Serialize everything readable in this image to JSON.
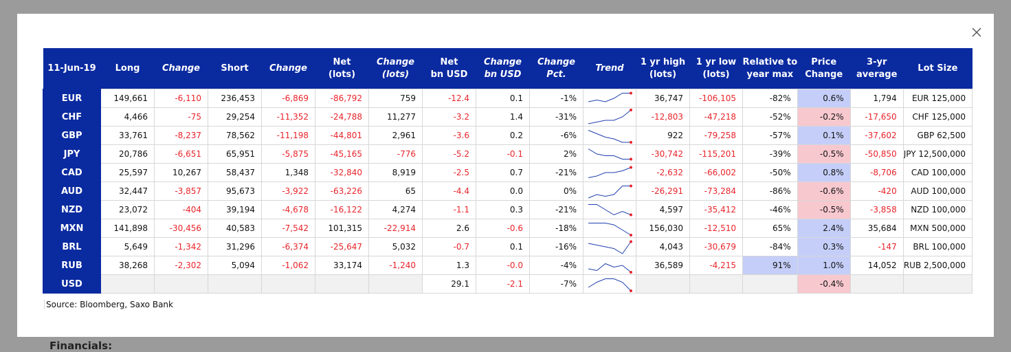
{
  "modal": {
    "close_icon": "close-icon",
    "behind_text": "Financials:"
  },
  "table": {
    "headers": [
      {
        "line1": "11-Jun-19",
        "line2": "",
        "italic": false
      },
      {
        "line1": "Long",
        "line2": "",
        "italic": false
      },
      {
        "line1": "Change",
        "line2": "",
        "italic": true
      },
      {
        "line1": "Short",
        "line2": "",
        "italic": false
      },
      {
        "line1": "Change",
        "line2": "",
        "italic": true
      },
      {
        "line1": "Net",
        "line2": "(lots)",
        "italic": false
      },
      {
        "line1": "Change",
        "line2": "(lots)",
        "italic": true
      },
      {
        "line1": "Net",
        "line2": "bn USD",
        "italic": false
      },
      {
        "line1": "Change",
        "line2": "bn USD",
        "italic": true
      },
      {
        "line1": "Change",
        "line2": "Pct.",
        "italic": true
      },
      {
        "line1": "Trend",
        "line2": "",
        "italic": true
      },
      {
        "line1": "1 yr high",
        "line2": "(lots)",
        "italic": false
      },
      {
        "line1": "1 yr low",
        "line2": "(lots)",
        "italic": false
      },
      {
        "line1": "Relative to",
        "line2": "year max",
        "italic": false
      },
      {
        "line1": "Price",
        "line2": "Change",
        "italic": false
      },
      {
        "line1": "3-yr",
        "line2": "average",
        "italic": false
      },
      {
        "line1": "Lot Size",
        "line2": "",
        "italic": false
      }
    ],
    "rows": [
      {
        "ccy": "EUR",
        "long": "149,661",
        "chg1": "-6,110",
        "short": "236,453",
        "chg2": "-6,869",
        "net": "-86,792",
        "chg_lots": "759",
        "net_usd": "-12.4",
        "chg_usd": "0.1",
        "chg_pct": "-1%",
        "trend": [
          6,
          5,
          6,
          4,
          1,
          1
        ],
        "high": "36,747",
        "low": "-106,105",
        "rel": "-82%",
        "price": "0.6%",
        "price_sign": "pos",
        "avg": "1,794",
        "lot": "EUR 125,000"
      },
      {
        "ccy": "CHF",
        "long": "4,466",
        "chg1": "-75",
        "short": "29,254",
        "chg2": "-11,352",
        "net": "-24,788",
        "chg_lots": "11,277",
        "net_usd": "-3.2",
        "chg_usd": "1.4",
        "chg_pct": "-31%",
        "trend": [
          8,
          7,
          6,
          6,
          4,
          0
        ],
        "high": "-12,803",
        "low": "-47,218",
        "rel": "-52%",
        "price": "-0.2%",
        "price_sign": "neg",
        "avg": "-17,650",
        "lot": "CHF 125,000"
      },
      {
        "ccy": "GBP",
        "long": "33,761",
        "chg1": "-8,237",
        "short": "78,562",
        "chg2": "-11,198",
        "net": "-44,801",
        "chg_lots": "2,961",
        "net_usd": "-3.6",
        "chg_usd": "0.2",
        "chg_pct": "-6%",
        "trend": [
          1,
          3,
          5,
          6,
          8,
          8
        ],
        "high": "922",
        "low": "-79,258",
        "rel": "-57%",
        "price": "0.1%",
        "price_sign": "pos",
        "avg": "-37,602",
        "lot": "GBP 62,500"
      },
      {
        "ccy": "JPY",
        "long": "20,786",
        "chg1": "-6,651",
        "short": "65,951",
        "chg2": "-5,875",
        "net": "-45,165",
        "chg_lots": "-776",
        "net_usd": "-5.2",
        "chg_usd": "-0.1",
        "chg_pct": "2%",
        "trend": [
          1,
          4,
          5,
          5,
          7,
          7
        ],
        "high": "-30,742",
        "low": "-115,201",
        "rel": "-39%",
        "price": "-0.5%",
        "price_sign": "neg",
        "avg": "-50,850",
        "lot": "JPY 12,500,000"
      },
      {
        "ccy": "CAD",
        "long": "25,597",
        "chg1": "10,267",
        "short": "58,437",
        "chg2": "1,348",
        "net": "-32,840",
        "chg_lots": "8,919",
        "net_usd": "-2.5",
        "chg_usd": "0.7",
        "chg_pct": "-21%",
        "trend": [
          7,
          6,
          4,
          4,
          3,
          1
        ],
        "high": "-2,632",
        "low": "-66,002",
        "rel": "-50%",
        "price": "0.8%",
        "price_sign": "pos",
        "avg": "-8,706",
        "lot": "CAD 100,000"
      },
      {
        "ccy": "AUD",
        "long": "32,447",
        "chg1": "-3,857",
        "short": "95,673",
        "chg2": "-3,922",
        "net": "-63,226",
        "chg_lots": "65",
        "net_usd": "-4.4",
        "chg_usd": "0.0",
        "chg_pct": "0%",
        "trend": [
          8,
          6,
          7,
          6,
          1,
          1
        ],
        "high": "-26,291",
        "low": "-73,284",
        "rel": "-86%",
        "price": "-0.6%",
        "price_sign": "neg",
        "avg": "-420",
        "lot": "AUD 100,000"
      },
      {
        "ccy": "NZD",
        "long": "23,072",
        "chg1": "-404",
        "short": "39,194",
        "chg2": "-4,678",
        "net": "-16,122",
        "chg_lots": "4,274",
        "net_usd": "-1.1",
        "chg_usd": "0.3",
        "chg_pct": "-21%",
        "trend": [
          1,
          1,
          4,
          7,
          5,
          7
        ],
        "high": "4,597",
        "low": "-35,412",
        "rel": "-46%",
        "price": "-0.5%",
        "price_sign": "neg",
        "avg": "-3,858",
        "lot": "NZD 100,000"
      },
      {
        "ccy": "MXN",
        "long": "141,898",
        "chg1": "-30,456",
        "short": "40,583",
        "chg2": "-7,542",
        "net": "101,315",
        "chg_lots": "-22,914",
        "net_usd": "2.6",
        "chg_usd": "-0.6",
        "chg_pct": "-18%",
        "trend": [
          1,
          1,
          1,
          2,
          5,
          8
        ],
        "high": "156,030",
        "low": "-12,510",
        "rel": "65%",
        "price": "2.4%",
        "price_sign": "pos",
        "avg": "35,684",
        "lot": "MXN 500,000"
      },
      {
        "ccy": "BRL",
        "long": "5,649",
        "chg1": "-1,342",
        "short": "31,296",
        "chg2": "-6,374",
        "net": "-25,647",
        "chg_lots": "5,032",
        "net_usd": "-0.7",
        "chg_usd": "0.1",
        "chg_pct": "-16%",
        "trend": [
          2,
          3,
          4,
          5,
          8,
          1
        ],
        "high": "4,043",
        "low": "-30,679",
        "rel": "-84%",
        "price": "0.3%",
        "price_sign": "pos",
        "avg": "-147",
        "lot": "BRL 100,000"
      },
      {
        "ccy": "RUB",
        "long": "38,268",
        "chg1": "-2,302",
        "short": "5,094",
        "chg2": "-1,062",
        "net": "33,174",
        "chg_lots": "-1,240",
        "net_usd": "1.3",
        "chg_usd": "-0.0",
        "chg_pct": "-4%",
        "trend": [
          6,
          7,
          3,
          5,
          4,
          8
        ],
        "high": "36,589",
        "low": "-4,215",
        "rel": "91%",
        "rel_highlight": true,
        "price": "1.0%",
        "price_sign": "pos",
        "avg": "14,052",
        "lot": "RUB 2,500,000"
      },
      {
        "ccy": "USD",
        "long": "",
        "chg1": "",
        "short": "",
        "chg2": "",
        "net": "",
        "chg_lots": "",
        "net_usd": "29.1",
        "chg_usd": "-2.1",
        "chg_pct": "-7%",
        "trend": [
          6,
          3,
          1,
          1,
          3,
          8
        ],
        "high": "",
        "low": "",
        "rel": "",
        "price": "-0.4%",
        "price_sign": "neg",
        "avg": "",
        "lot": ""
      }
    ],
    "colors": {
      "header_bg": "#0a2aa0",
      "negative_text": "#e8242a",
      "positive_highlight": "#c4cef8",
      "negative_highlight": "#f8c8cf",
      "trend_line": "#1f3fae",
      "trend_marker": "#e8242a"
    }
  },
  "source": "Source: Bloomberg, Saxo Bank"
}
